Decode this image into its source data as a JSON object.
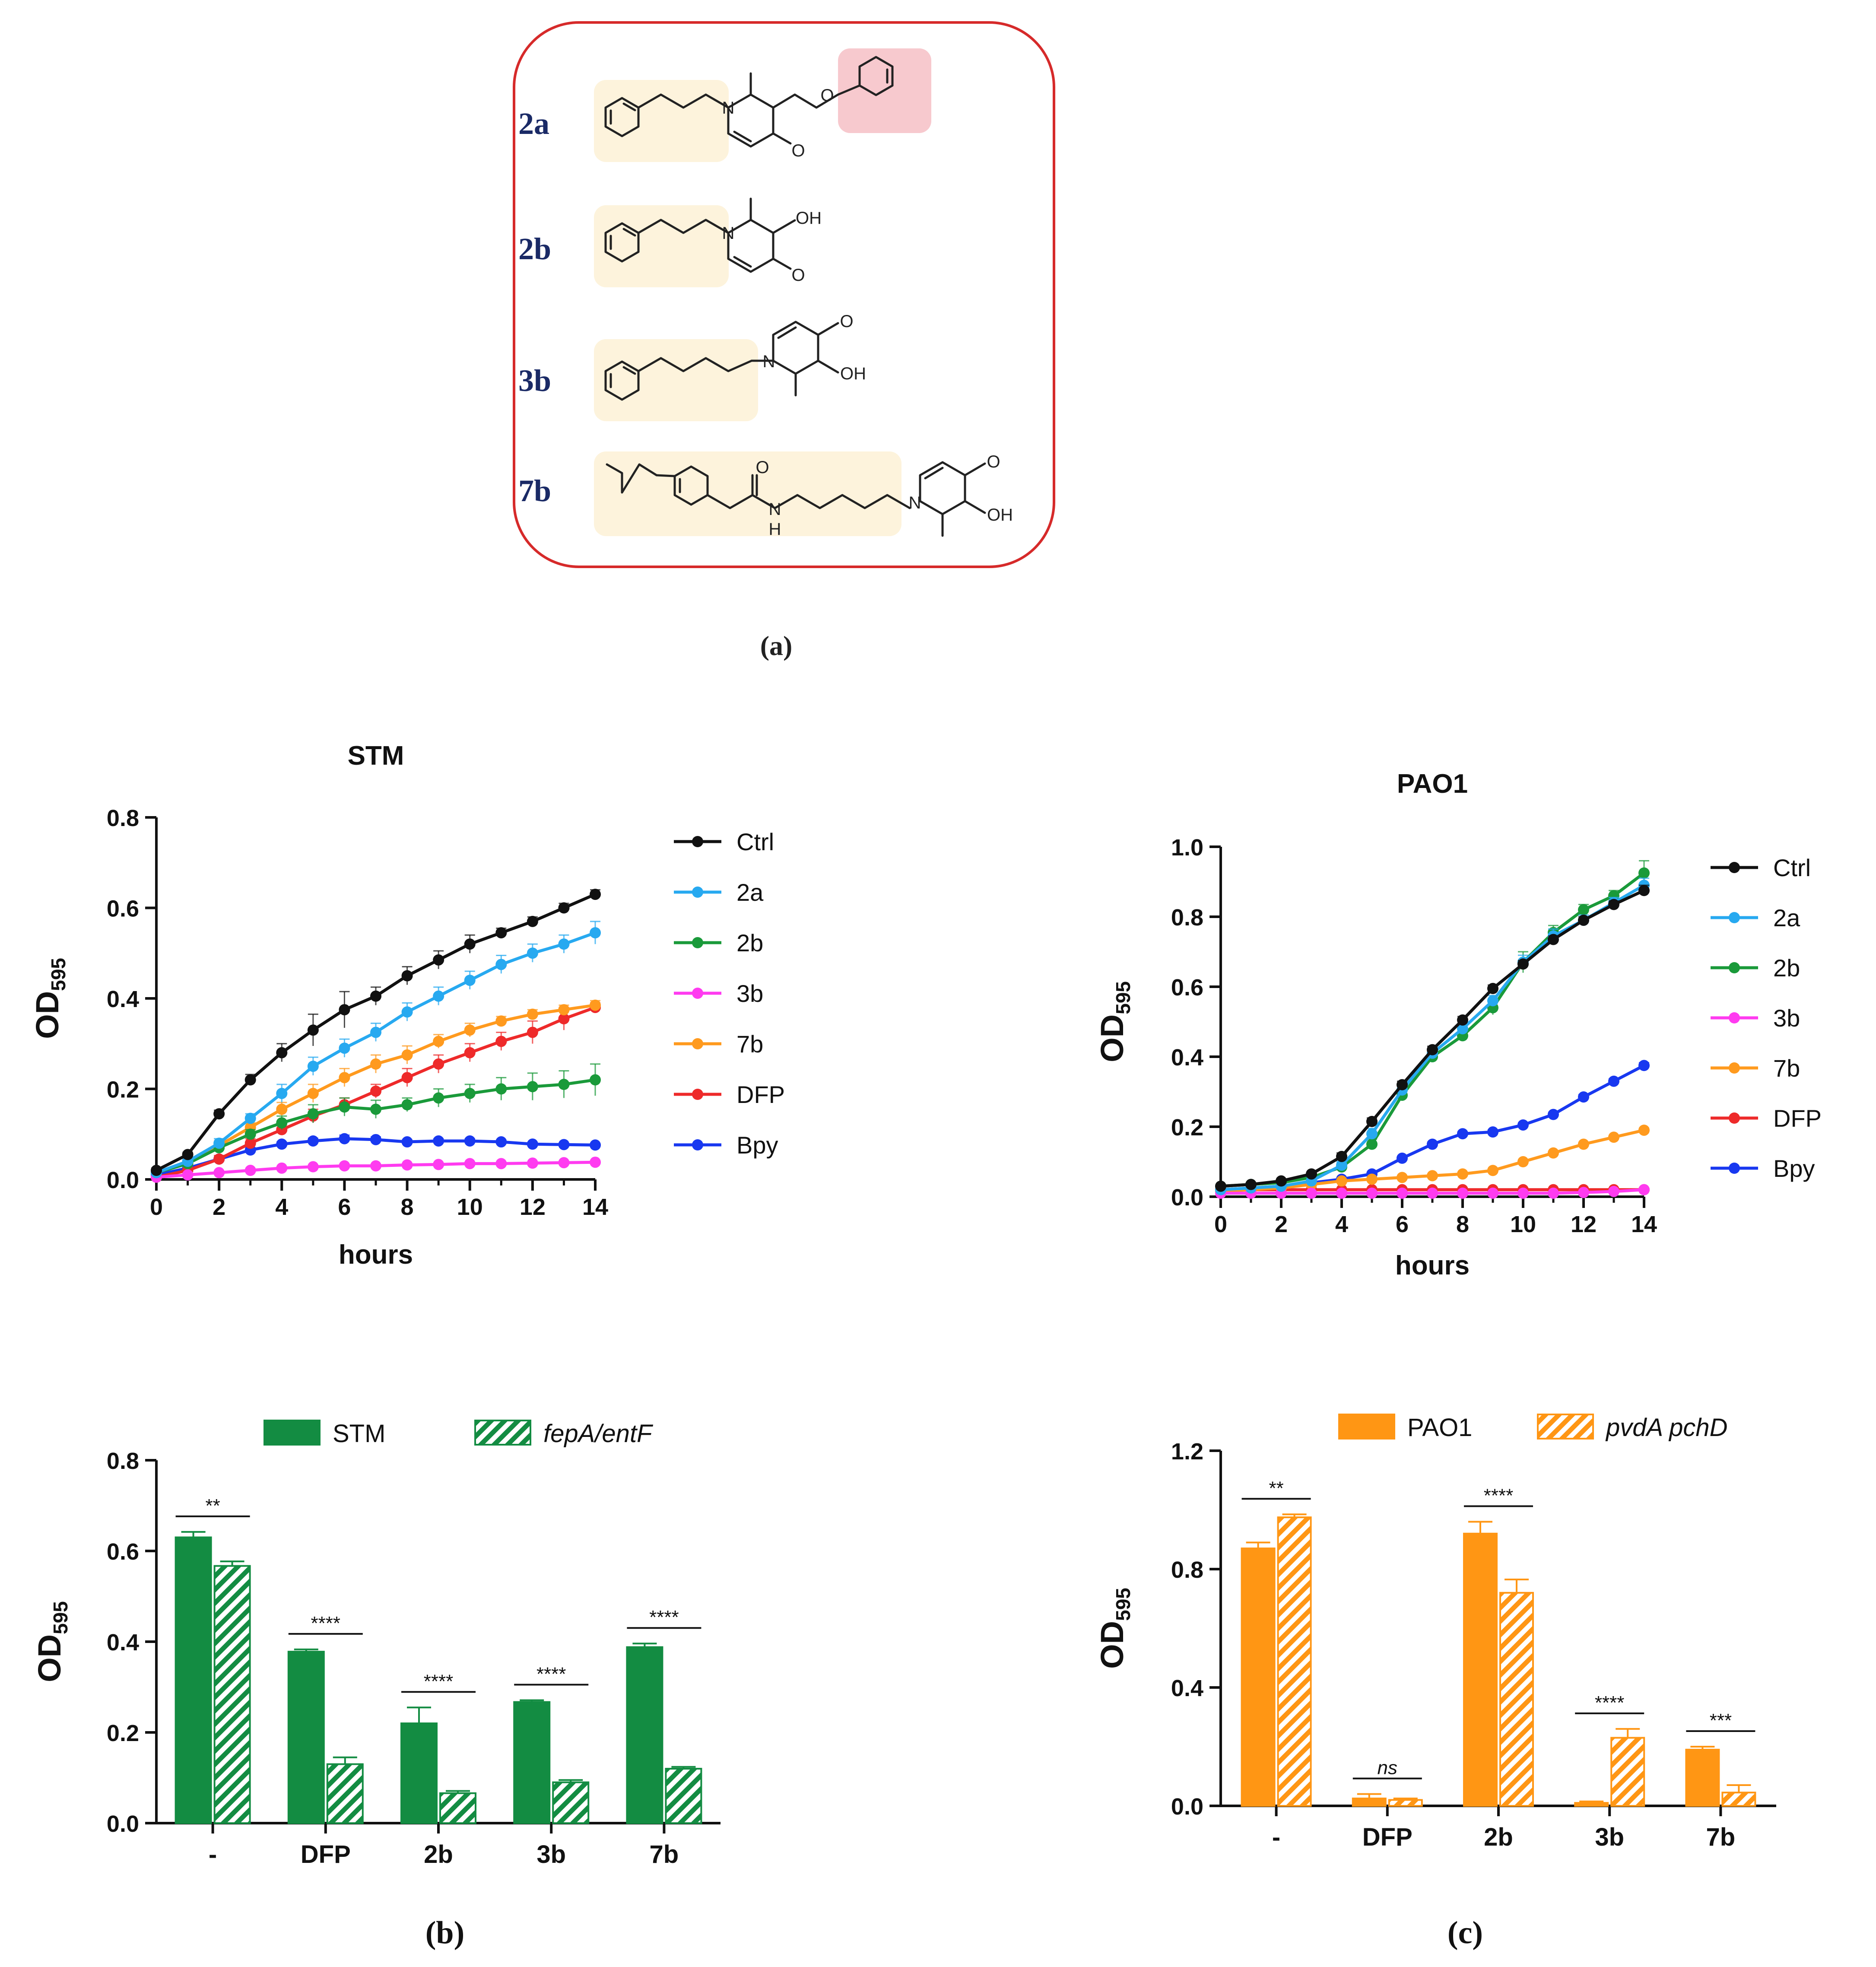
{
  "colors": {
    "panel_border": "#d62a2a",
    "highlight_yellow": "#fdf3dc",
    "highlight_pink": "#f7c9ce",
    "compound_label": "#1a2a66",
    "ctrl": "#111111",
    "c2a": "#27a9f0",
    "c2b": "#1a9a3a",
    "c3b": "#ff3bf0",
    "c7b": "#ff9a1e",
    "dfp": "#ee2a2a",
    "bpy": "#1838f0",
    "green_bar": "#138c42",
    "orange_bar": "#ff9614"
  },
  "panel_a": {
    "caption": "(a)",
    "compounds": [
      {
        "label": "2a",
        "atoms": [
          "N",
          "O",
          "O"
        ]
      },
      {
        "label": "2b",
        "atoms": [
          "N",
          "OH",
          "O"
        ]
      },
      {
        "label": "3b",
        "atoms": [
          "O",
          "OH",
          "N"
        ]
      },
      {
        "label": "7b",
        "atoms": [
          "O",
          "N",
          "H",
          "O",
          "N",
          "OH"
        ]
      }
    ]
  },
  "chart_data": [
    {
      "type": "line",
      "title": "STM",
      "xlabel": "hours",
      "ylabel": "OD",
      "ylabel_sub": "595",
      "x": [
        0,
        1,
        2,
        3,
        4,
        5,
        6,
        7,
        8,
        9,
        10,
        11,
        12,
        13,
        14
      ],
      "xticks": [
        "0",
        "2",
        "4",
        "6",
        "8",
        "10",
        "12",
        "14"
      ],
      "xlim": [
        0,
        14
      ],
      "ylim": [
        0,
        0.8
      ],
      "yticks": [
        "0.0",
        "0.2",
        "0.4",
        "0.6",
        "0.8"
      ],
      "series": [
        {
          "name": "Ctrl",
          "color_key": "ctrl",
          "values": [
            0.02,
            0.055,
            0.145,
            0.22,
            0.28,
            0.33,
            0.375,
            0.405,
            0.45,
            0.485,
            0.52,
            0.545,
            0.57,
            0.6,
            0.63
          ],
          "err": [
            0.005,
            0.005,
            0.008,
            0.012,
            0.02,
            0.035,
            0.04,
            0.02,
            0.02,
            0.02,
            0.02,
            0.01,
            0.01,
            0.01,
            0.01
          ]
        },
        {
          "name": "2a",
          "color_key": "c2a",
          "values": [
            0.015,
            0.04,
            0.08,
            0.135,
            0.19,
            0.25,
            0.29,
            0.325,
            0.37,
            0.405,
            0.44,
            0.475,
            0.5,
            0.52,
            0.545
          ],
          "err": [
            0.005,
            0.005,
            0.01,
            0.01,
            0.02,
            0.02,
            0.02,
            0.02,
            0.02,
            0.02,
            0.02,
            0.02,
            0.02,
            0.02,
            0.025
          ]
        },
        {
          "name": "2b",
          "color_key": "c2b",
          "values": [
            0.015,
            0.035,
            0.07,
            0.1,
            0.125,
            0.145,
            0.16,
            0.155,
            0.165,
            0.18,
            0.19,
            0.2,
            0.205,
            0.21,
            0.22
          ],
          "err": [
            0.005,
            0.005,
            0.01,
            0.01,
            0.015,
            0.02,
            0.02,
            0.02,
            0.015,
            0.02,
            0.02,
            0.025,
            0.03,
            0.03,
            0.035
          ]
        },
        {
          "name": "3b",
          "color_key": "c3b",
          "values": [
            0.005,
            0.01,
            0.015,
            0.02,
            0.025,
            0.028,
            0.03,
            0.03,
            0.032,
            0.033,
            0.035,
            0.035,
            0.036,
            0.037,
            0.038
          ],
          "err": [
            0.002,
            0.002,
            0.003,
            0.003,
            0.003,
            0.003,
            0.003,
            0.003,
            0.003,
            0.003,
            0.003,
            0.003,
            0.003,
            0.003,
            0.003
          ]
        },
        {
          "name": "7b",
          "color_key": "c7b",
          "values": [
            0.015,
            0.035,
            0.075,
            0.115,
            0.155,
            0.19,
            0.225,
            0.255,
            0.275,
            0.305,
            0.33,
            0.35,
            0.365,
            0.375,
            0.385
          ],
          "err": [
            0.005,
            0.005,
            0.01,
            0.01,
            0.015,
            0.02,
            0.02,
            0.02,
            0.02,
            0.015,
            0.015,
            0.01,
            0.01,
            0.01,
            0.01
          ]
        },
        {
          "name": "DFP",
          "color_key": "dfp",
          "values": [
            0.005,
            0.02,
            0.045,
            0.08,
            0.11,
            0.14,
            0.165,
            0.195,
            0.225,
            0.255,
            0.28,
            0.305,
            0.325,
            0.355,
            0.38
          ],
          "err": [
            0.003,
            0.005,
            0.008,
            0.01,
            0.01,
            0.015,
            0.015,
            0.015,
            0.02,
            0.02,
            0.02,
            0.02,
            0.025,
            0.025,
            0.01
          ]
        },
        {
          "name": "Bpy",
          "color_key": "bpy",
          "values": [
            0.01,
            0.025,
            0.045,
            0.065,
            0.078,
            0.085,
            0.09,
            0.088,
            0.083,
            0.085,
            0.085,
            0.083,
            0.078,
            0.077,
            0.076
          ],
          "err": [
            0.003,
            0.004,
            0.005,
            0.005,
            0.005,
            0.006,
            0.008,
            0.006,
            0.005,
            0.005,
            0.005,
            0.004,
            0.004,
            0.003,
            0.003
          ]
        }
      ]
    },
    {
      "type": "line",
      "title": "PAO1",
      "xlabel": "hours",
      "ylabel": "OD",
      "ylabel_sub": "595",
      "x": [
        0,
        1,
        2,
        3,
        4,
        5,
        6,
        7,
        8,
        9,
        10,
        11,
        12,
        13,
        14
      ],
      "xticks": [
        "0",
        "2",
        "4",
        "6",
        "8",
        "10",
        "12",
        "14"
      ],
      "xlim": [
        0,
        14
      ],
      "ylim": [
        0,
        1.0
      ],
      "yticks": [
        "0.0",
        "0.2",
        "0.4",
        "0.6",
        "0.8",
        "1.0"
      ],
      "series": [
        {
          "name": "Ctrl",
          "color_key": "ctrl",
          "values": [
            0.03,
            0.035,
            0.045,
            0.065,
            0.115,
            0.215,
            0.32,
            0.42,
            0.505,
            0.595,
            0.665,
            0.735,
            0.79,
            0.835,
            0.875
          ],
          "err": [
            0.004,
            0.004,
            0.004,
            0.005,
            0.01,
            0.01,
            0.01,
            0.01,
            0.01,
            0.01,
            0.01,
            0.01,
            0.01,
            0.01,
            0.015
          ]
        },
        {
          "name": "2a",
          "color_key": "c2a",
          "values": [
            0.02,
            0.025,
            0.03,
            0.045,
            0.09,
            0.18,
            0.305,
            0.41,
            0.48,
            0.56,
            0.67,
            0.745,
            0.79,
            0.84,
            0.89
          ],
          "err": [
            0.004,
            0.004,
            0.004,
            0.005,
            0.01,
            0.015,
            0.015,
            0.015,
            0.015,
            0.015,
            0.02,
            0.02,
            0.015,
            0.015,
            0.02
          ]
        },
        {
          "name": "2b",
          "color_key": "c2b",
          "values": [
            0.03,
            0.035,
            0.04,
            0.055,
            0.085,
            0.15,
            0.29,
            0.4,
            0.46,
            0.54,
            0.67,
            0.755,
            0.82,
            0.86,
            0.925
          ],
          "err": [
            0.004,
            0.004,
            0.004,
            0.005,
            0.01,
            0.015,
            0.015,
            0.015,
            0.015,
            0.02,
            0.03,
            0.02,
            0.015,
            0.015,
            0.035
          ]
        },
        {
          "name": "3b",
          "color_key": "c3b",
          "values": [
            0.01,
            0.01,
            0.01,
            0.01,
            0.01,
            0.01,
            0.01,
            0.01,
            0.01,
            0.01,
            0.01,
            0.01,
            0.012,
            0.015,
            0.02
          ],
          "err": [
            0.002,
            0.002,
            0.002,
            0.002,
            0.002,
            0.002,
            0.002,
            0.002,
            0.002,
            0.002,
            0.002,
            0.002,
            0.002,
            0.002,
            0.002
          ]
        },
        {
          "name": "7b",
          "color_key": "c7b",
          "values": [
            0.015,
            0.02,
            0.025,
            0.035,
            0.045,
            0.05,
            0.055,
            0.06,
            0.065,
            0.075,
            0.1,
            0.125,
            0.15,
            0.17,
            0.19
          ],
          "err": [
            0.003,
            0.003,
            0.003,
            0.003,
            0.004,
            0.004,
            0.004,
            0.004,
            0.005,
            0.005,
            0.005,
            0.005,
            0.005,
            0.005,
            0.006
          ]
        },
        {
          "name": "DFP",
          "color_key": "dfp",
          "values": [
            0.02,
            0.02,
            0.02,
            0.02,
            0.02,
            0.02,
            0.02,
            0.02,
            0.02,
            0.02,
            0.02,
            0.02,
            0.02,
            0.02,
            0.02
          ],
          "err": [
            0.002,
            0.002,
            0.002,
            0.002,
            0.002,
            0.002,
            0.002,
            0.002,
            0.002,
            0.002,
            0.002,
            0.002,
            0.002,
            0.002,
            0.002
          ]
        },
        {
          "name": "Bpy",
          "color_key": "bpy",
          "values": [
            0.02,
            0.025,
            0.03,
            0.04,
            0.05,
            0.065,
            0.11,
            0.15,
            0.18,
            0.185,
            0.205,
            0.235,
            0.285,
            0.33,
            0.375
          ],
          "err": [
            0.003,
            0.003,
            0.003,
            0.004,
            0.004,
            0.005,
            0.005,
            0.006,
            0.006,
            0.006,
            0.006,
            0.006,
            0.007,
            0.007,
            0.008
          ]
        }
      ]
    },
    {
      "type": "bar",
      "caption": "(b)",
      "ylabel": "OD",
      "ylabel_sub": "595",
      "categories": [
        "-",
        "DFP",
        "2b",
        "3b",
        "7b"
      ],
      "ylim": [
        0,
        0.8
      ],
      "yticks": [
        "0.0",
        "0.2",
        "0.4",
        "0.6",
        "0.8"
      ],
      "color_key": "green_bar",
      "series": [
        {
          "name": "STM",
          "italic": false,
          "hatched": false,
          "values": [
            0.63,
            0.378,
            0.22,
            0.267,
            0.388
          ],
          "err": [
            0.012,
            0.005,
            0.035,
            0.004,
            0.008
          ]
        },
        {
          "name": "fepA/entF",
          "italic": true,
          "hatched": true,
          "values": [
            0.567,
            0.13,
            0.066,
            0.09,
            0.12
          ],
          "err": [
            0.01,
            0.015,
            0.005,
            0.005,
            0.004
          ]
        }
      ],
      "significance": [
        "**",
        "****",
        "****",
        "****",
        "****"
      ]
    },
    {
      "type": "bar",
      "caption": "(c)",
      "ylabel": "OD",
      "ylabel_sub": "595",
      "categories": [
        "-",
        "DFP",
        "2b",
        "3b",
        "7b"
      ],
      "ylim": [
        0,
        1.2
      ],
      "yticks": [
        "0.0",
        "0.4",
        "0.8",
        "1.2"
      ],
      "color_key": "orange_bar",
      "series": [
        {
          "name": "PAO1",
          "italic": false,
          "hatched": false,
          "values": [
            0.87,
            0.025,
            0.92,
            0.01,
            0.19
          ],
          "err": [
            0.02,
            0.015,
            0.04,
            0.005,
            0.01
          ]
        },
        {
          "name": "pvdA pchD",
          "italic": true,
          "hatched": true,
          "values": [
            0.975,
            0.02,
            0.72,
            0.23,
            0.045
          ],
          "err": [
            0.01,
            0.005,
            0.045,
            0.03,
            0.025
          ]
        }
      ],
      "significance": [
        "**",
        "ns",
        "****",
        "****",
        "***"
      ],
      "significance_italic": [
        false,
        true,
        false,
        false,
        false
      ]
    }
  ]
}
